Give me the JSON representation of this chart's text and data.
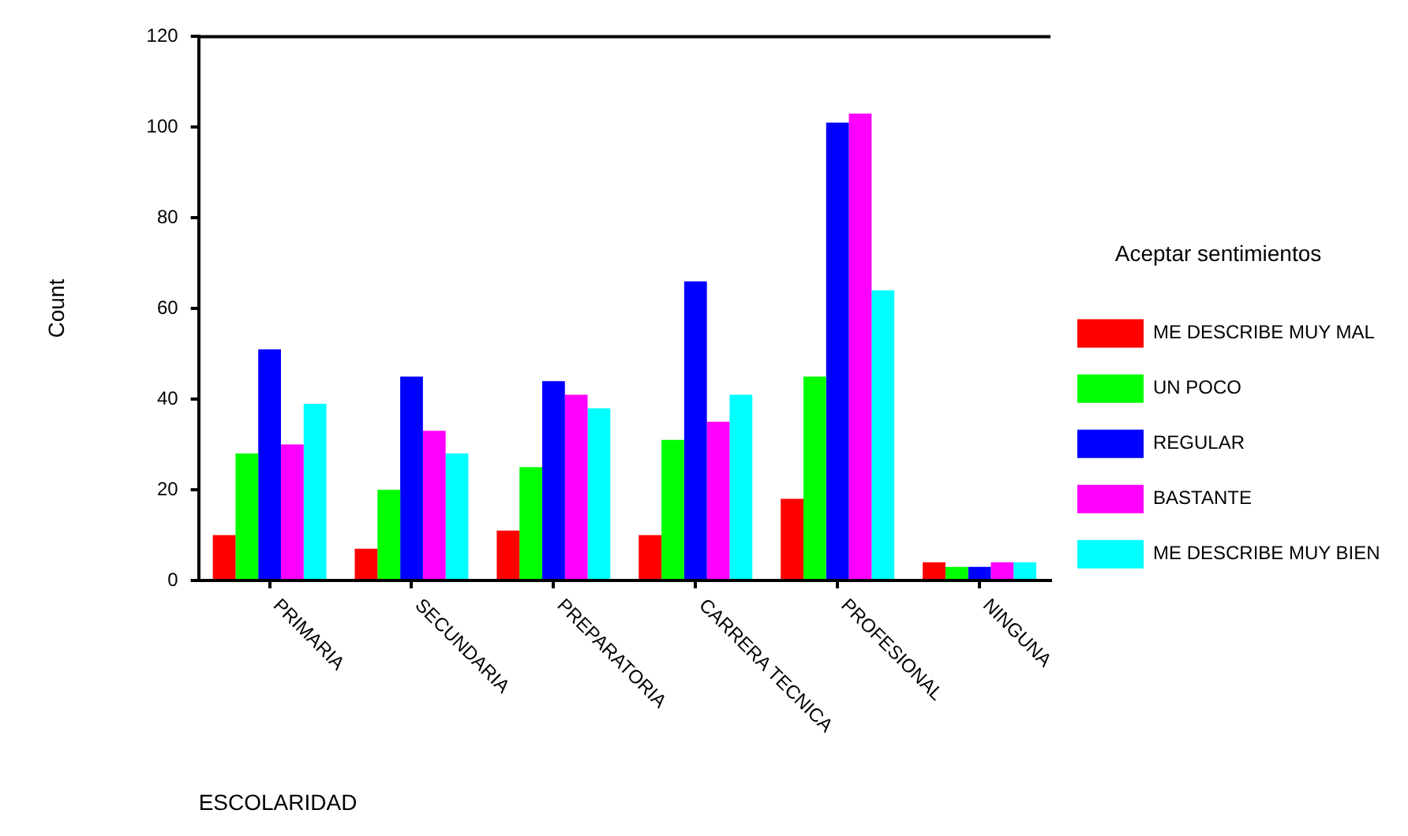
{
  "chart_data": {
    "type": "bar",
    "xlabel": "ESCOLARIDAD",
    "ylabel": "Count",
    "legend_title": "Aceptar sentimientos",
    "categories": [
      "PRIMARIA",
      "SECUNDARIA",
      "PREPARATORIA",
      "CARRERA TECNICA",
      "PROFESIONAL",
      "NINGUNA"
    ],
    "series": [
      {
        "name": "ME DESCRIBE MUY MAL",
        "color": "#ff0000",
        "values": [
          10,
          7,
          11,
          10,
          18,
          4
        ]
      },
      {
        "name": "UN POCO",
        "color": "#00ff00",
        "values": [
          28,
          20,
          25,
          31,
          45,
          3
        ]
      },
      {
        "name": "REGULAR",
        "color": "#0000ff",
        "values": [
          51,
          45,
          44,
          66,
          101,
          3
        ]
      },
      {
        "name": "BASTANTE",
        "color": "#ff00ff",
        "values": [
          30,
          33,
          41,
          35,
          103,
          4
        ]
      },
      {
        "name": "ME DESCRIBE MUY BIEN",
        "color": "#00ffff",
        "values": [
          39,
          28,
          38,
          41,
          64,
          4
        ]
      }
    ],
    "ylim": [
      0,
      120
    ],
    "yticks": [
      0,
      20,
      40,
      60,
      80,
      100,
      120
    ],
    "grid": false,
    "legend": "right"
  }
}
